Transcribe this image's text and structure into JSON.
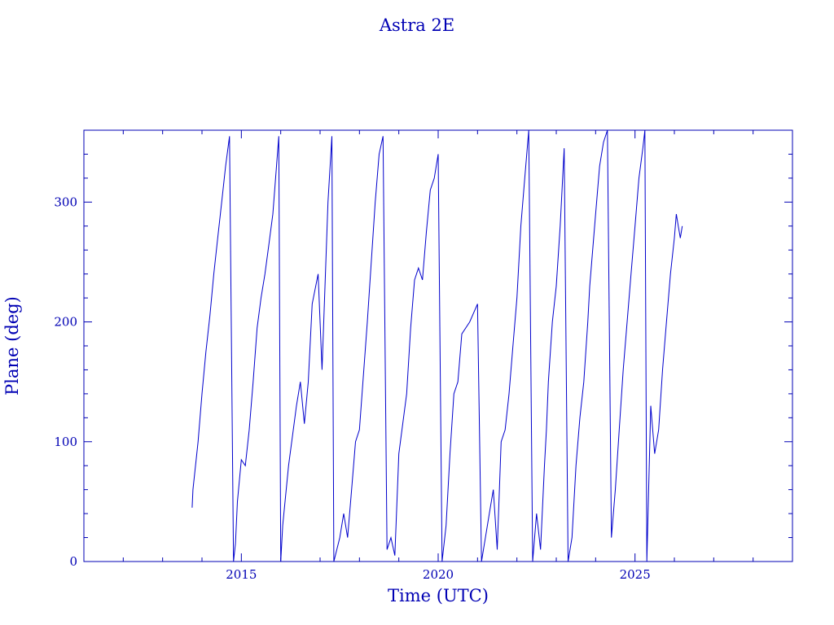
{
  "chart_data": {
    "type": "line",
    "title": "Astra 2E",
    "xlabel": "Time (UTC)",
    "ylabel": "Plane (deg)",
    "xlim": [
      2011.0,
      2029.0
    ],
    "ylim": [
      0,
      360
    ],
    "xticks": [
      2015,
      2020,
      2025
    ],
    "yticks": [
      0,
      100,
      200,
      300
    ],
    "grid": false,
    "color": "#0000cc",
    "series": [
      {
        "x": [
          2013.75,
          2013.77,
          2013.9,
          2014.0,
          2014.1,
          2014.2,
          2014.3,
          2014.4,
          2014.5,
          2014.6,
          2014.7,
          2014.8,
          2014.85,
          2014.9,
          2015.0,
          2015.1,
          2015.2,
          2015.3,
          2015.4,
          2015.5,
          2015.6,
          2015.7,
          2015.8,
          2015.95,
          2016.0,
          2016.05,
          2016.2,
          2016.4,
          2016.5,
          2016.6,
          2016.7,
          2016.8,
          2016.95,
          2017.05,
          2017.2,
          2017.3,
          2017.35,
          2017.5,
          2017.6,
          2017.7,
          2017.8,
          2017.9,
          2018.0,
          2018.2,
          2018.4,
          2018.5,
          2018.6,
          2018.7,
          2018.8,
          2018.9,
          2019.0,
          2019.2,
          2019.3,
          2019.4,
          2019.5,
          2019.6,
          2019.7,
          2019.8,
          2019.9,
          2020.0,
          2020.1,
          2020.2,
          2020.3,
          2020.4,
          2020.5,
          2020.6,
          2020.8,
          2021.0,
          2021.1,
          2021.2,
          2021.3,
          2021.4,
          2021.5,
          2021.6,
          2021.7,
          2021.8,
          2021.9,
          2022.0,
          2022.1,
          2022.2,
          2022.3,
          2022.4,
          2022.5,
          2022.6,
          2022.7,
          2022.75,
          2022.8,
          2022.9,
          2023.0,
          2023.1,
          2023.2,
          2023.3,
          2023.4,
          2023.5,
          2023.6,
          2023.7,
          2023.8,
          2023.85,
          2023.9,
          2024.0,
          2024.1,
          2024.2,
          2024.3,
          2024.4,
          2024.5,
          2024.6,
          2024.7,
          2024.8,
          2024.9,
          2025.0,
          2025.1,
          2025.2,
          2025.25,
          2025.3,
          2025.4,
          2025.5,
          2025.6,
          2025.7,
          2025.8,
          2025.9,
          2026.0,
          2026.05,
          2026.1,
          2026.15,
          2026.2
        ],
        "y": [
          45,
          60,
          100,
          140,
          175,
          205,
          240,
          270,
          300,
          330,
          355,
          0,
          15,
          50,
          85,
          80,
          110,
          150,
          195,
          220,
          240,
          265,
          290,
          355,
          0,
          30,
          80,
          130,
          150,
          115,
          150,
          215,
          240,
          160,
          300,
          355,
          0,
          20,
          40,
          20,
          60,
          100,
          110,
          200,
          300,
          340,
          355,
          10,
          20,
          5,
          90,
          140,
          195,
          235,
          245,
          235,
          275,
          310,
          320,
          340,
          0,
          30,
          90,
          140,
          150,
          190,
          200,
          215,
          0,
          20,
          40,
          60,
          10,
          100,
          110,
          140,
          180,
          220,
          280,
          320,
          360,
          0,
          40,
          10,
          80,
          110,
          150,
          200,
          230,
          280,
          345,
          0,
          20,
          80,
          120,
          150,
          200,
          230,
          250,
          290,
          330,
          350,
          360,
          20,
          60,
          110,
          160,
          200,
          240,
          280,
          320,
          345,
          360,
          0,
          130,
          90,
          110,
          160,
          200,
          240,
          270,
          290,
          280,
          270,
          280
        ]
      }
    ]
  }
}
